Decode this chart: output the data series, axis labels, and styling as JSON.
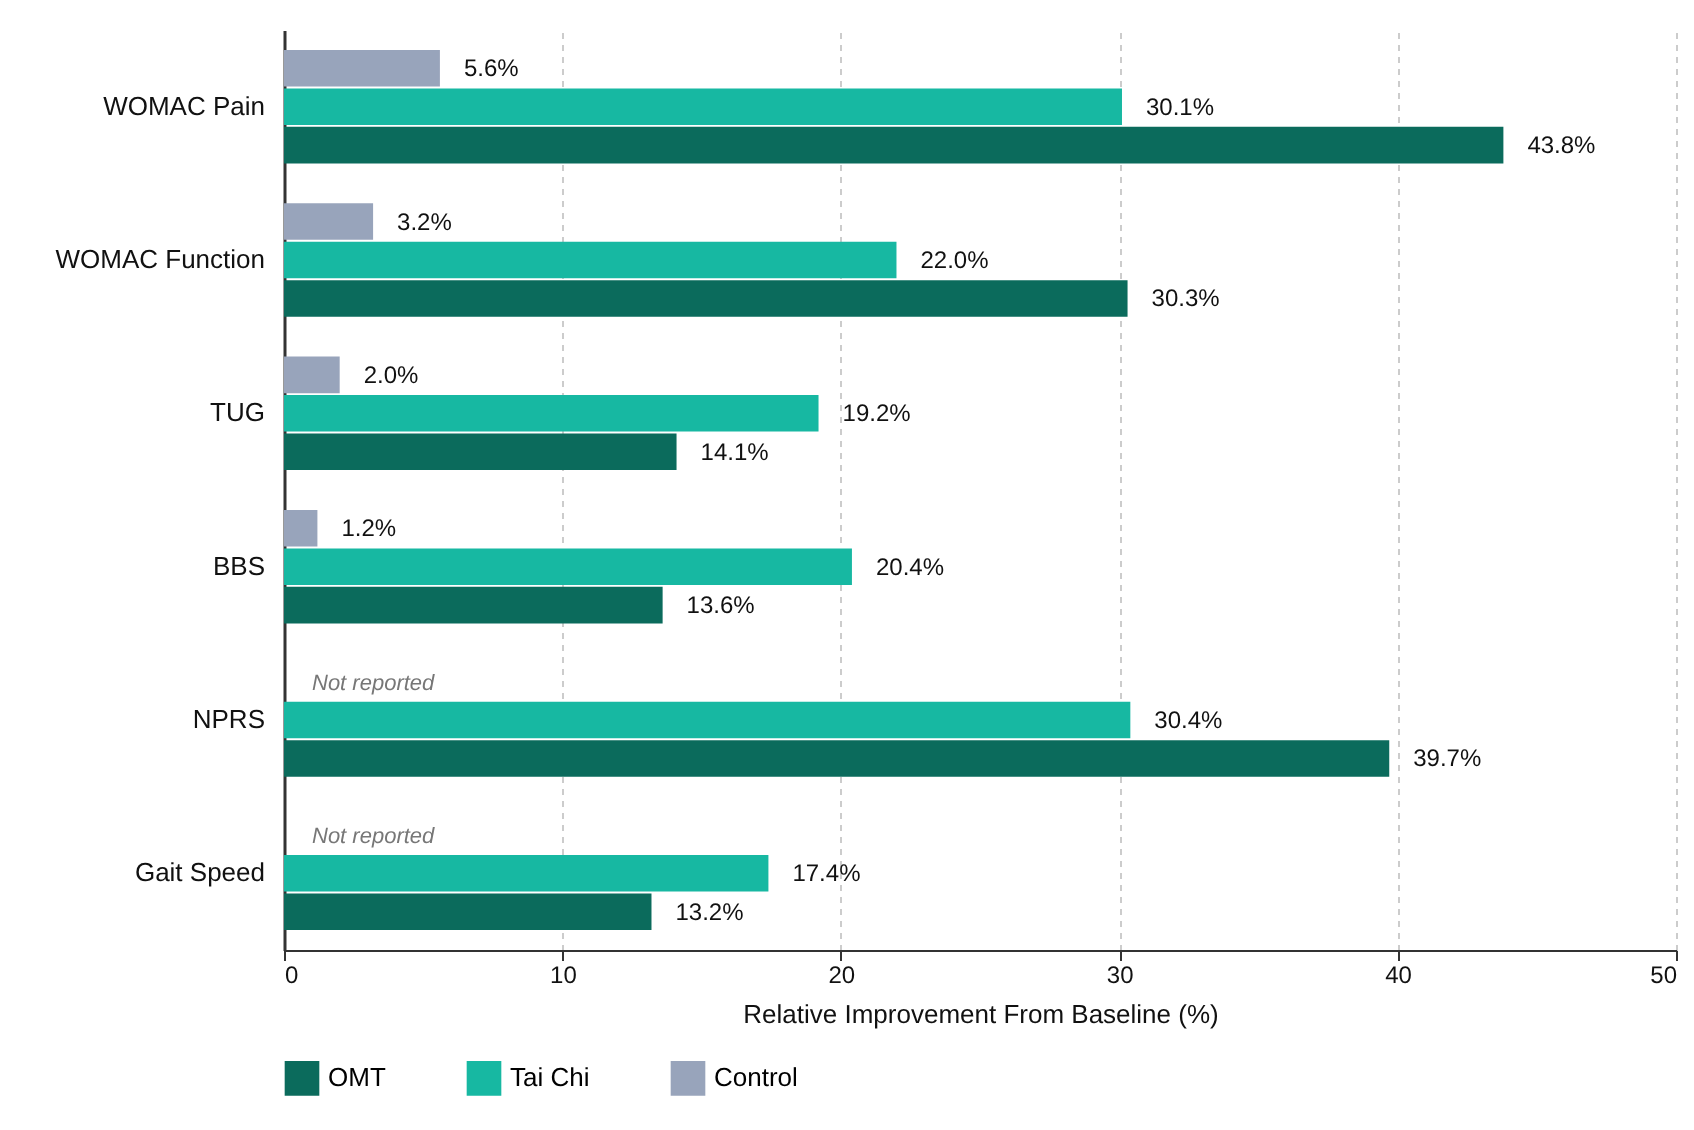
{
  "chart_data": {
    "type": "bar",
    "orientation": "horizontal",
    "categories": [
      "WOMAC Pain",
      "WOMAC Function",
      "TUG",
      "BBS",
      "NPRS",
      "Gait Speed"
    ],
    "series": [
      {
        "name": "OMT",
        "color": "#0b6b5c",
        "values": [
          43.8,
          30.3,
          14.1,
          13.6,
          39.7,
          13.2
        ],
        "value_labels": [
          "43.8%",
          "30.3%",
          "14.1%",
          "13.6%",
          "39.7%",
          "13.2%"
        ]
      },
      {
        "name": "Tai Chi",
        "color": "#17b8a2",
        "values": [
          30.1,
          22.0,
          19.2,
          20.4,
          30.4,
          17.4
        ],
        "value_labels": [
          "30.1%",
          "22.0%",
          "19.2%",
          "20.4%",
          "30.4%",
          "17.4%"
        ]
      },
      {
        "name": "Control",
        "color": "#98a4bb",
        "values": [
          5.6,
          3.2,
          2.0,
          1.2,
          null,
          null
        ],
        "value_labels": [
          "5.6%",
          "3.2%",
          "2.0%",
          "1.2%",
          null,
          null
        ]
      }
    ],
    "xlabel": "Relative Improvement From Baseline (%)",
    "xlim": [
      0,
      50
    ],
    "xticks": [
      0,
      10,
      20,
      30,
      40,
      50
    ],
    "grid": "x",
    "legend": "bottom",
    "annotations": [
      {
        "text": "Not reported",
        "x": 0,
        "y": "NPRS"
      },
      {
        "text": "Not reported",
        "x": 0,
        "y": "Gait Speed"
      }
    ]
  }
}
